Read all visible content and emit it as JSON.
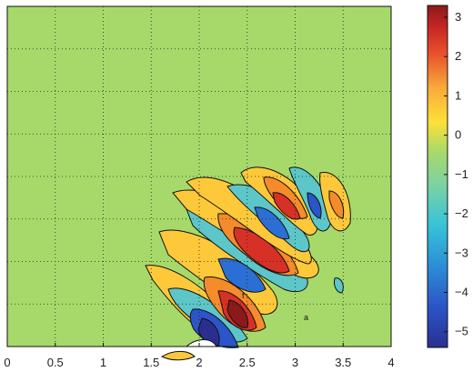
{
  "chart_data": {
    "type": "heatmap",
    "title": "",
    "xlabel": "",
    "ylabel": "",
    "xlim": [
      0,
      4
    ],
    "x_ticks": [
      "0",
      "0.5",
      "1",
      "1.5",
      "2",
      "2.5",
      "3",
      "3.5",
      "4"
    ],
    "y_ticks": [],
    "grid": true,
    "colorbar": {
      "range": [
        -5.4,
        3.3
      ],
      "ticks": [
        "3",
        "2",
        "1",
        "0",
        "-1",
        "-2",
        "-3",
        "-4",
        "-5"
      ],
      "colormap": "jet",
      "colors": [
        "#2a2f8f",
        "#2b6fd4",
        "#37c4d8",
        "#a6d96a",
        "#fee038",
        "#f58b2a",
        "#d73027",
        "#8b1a1a"
      ]
    },
    "background_color": "#a6d96a",
    "description_lobes": [
      {
        "x": 1.95,
        "level": -5.0
      },
      {
        "x": 2.3,
        "level": 3.0
      },
      {
        "x": 2.25,
        "level": -3.0
      },
      {
        "x": 2.45,
        "level": 2.5
      },
      {
        "x": 2.6,
        "level": -2.5
      },
      {
        "x": 2.8,
        "level": 2.0
      },
      {
        "x": 3.05,
        "level": -1.5
      },
      {
        "x": 3.3,
        "level": 1.0
      }
    ],
    "annotations": [
      "a",
      "f"
    ]
  }
}
